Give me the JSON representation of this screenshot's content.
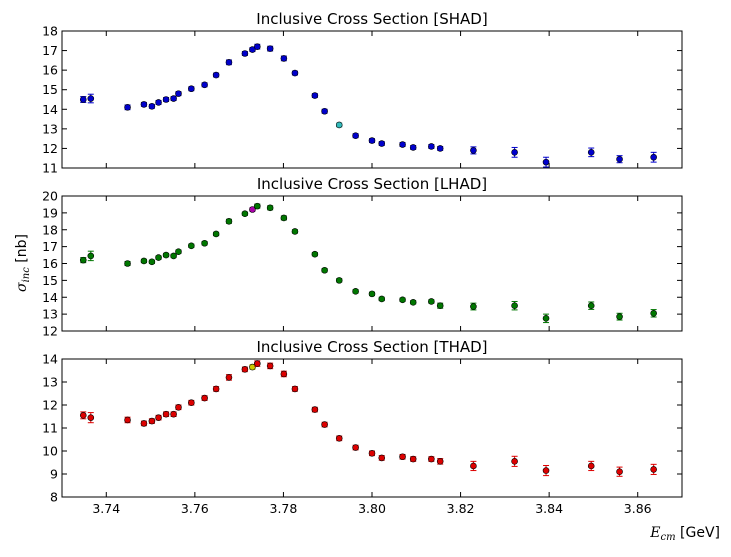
{
  "chart_data": [
    {
      "type": "scatter",
      "title": "Inclusive Cross Section [SHAD]",
      "xlim": [
        3.73,
        3.87
      ],
      "ylim": [
        11,
        18
      ],
      "yticks": [
        11,
        12,
        13,
        14,
        15,
        16,
        17,
        18
      ],
      "marker_color": "#0000cc",
      "highlight_color": "#33bbbb",
      "highlight_index": 21,
      "x": [
        3.7348,
        3.7365,
        3.7448,
        3.7485,
        3.7503,
        3.7518,
        3.7535,
        3.7552,
        3.7563,
        3.7592,
        3.7622,
        3.7648,
        3.7677,
        3.7713,
        3.773,
        3.7741,
        3.777,
        3.7801,
        3.7826,
        3.7871,
        3.7893,
        3.7926,
        3.7963,
        3.8,
        3.8022,
        3.8069,
        3.8093,
        3.8134,
        3.8154,
        3.8229,
        3.8322,
        3.8393,
        3.8495,
        3.8559,
        3.8636
      ],
      "y": [
        14.5,
        14.55,
        14.1,
        14.25,
        14.15,
        14.35,
        14.5,
        14.55,
        14.8,
        15.05,
        15.25,
        15.75,
        16.4,
        16.85,
        17.05,
        17.2,
        17.1,
        16.6,
        15.85,
        14.7,
        13.9,
        13.2,
        12.65,
        12.4,
        12.25,
        12.2,
        12.05,
        12.1,
        12.0,
        11.9,
        11.8,
        11.3,
        11.8,
        11.45,
        11.55
      ],
      "yerr": [
        0.15,
        0.22,
        0.12,
        0.1,
        0.1,
        0.1,
        0.1,
        0.1,
        0.1,
        0.1,
        0.1,
        0.1,
        0.12,
        0.1,
        0.1,
        0.12,
        0.12,
        0.12,
        0.1,
        0.1,
        0.1,
        0.1,
        0.1,
        0.1,
        0.1,
        0.1,
        0.1,
        0.1,
        0.1,
        0.18,
        0.25,
        0.25,
        0.22,
        0.18,
        0.25
      ]
    },
    {
      "type": "scatter",
      "title": "Inclusive Cross Section [LHAD]",
      "xlim": [
        3.73,
        3.87
      ],
      "ylim": [
        12,
        20
      ],
      "yticks": [
        12,
        13,
        14,
        15,
        16,
        17,
        18,
        19,
        20
      ],
      "marker_color": "#007700",
      "highlight_color": "#aa00aa",
      "highlight_index": 14,
      "x": [
        3.7348,
        3.7365,
        3.7448,
        3.7485,
        3.7503,
        3.7518,
        3.7535,
        3.7552,
        3.7563,
        3.7592,
        3.7622,
        3.7648,
        3.7677,
        3.7713,
        3.773,
        3.7741,
        3.777,
        3.7801,
        3.7826,
        3.7871,
        3.7893,
        3.7926,
        3.7963,
        3.8,
        3.8022,
        3.8069,
        3.8093,
        3.8134,
        3.8154,
        3.8229,
        3.8322,
        3.8393,
        3.8495,
        3.8559,
        3.8636
      ],
      "y": [
        16.2,
        16.45,
        16.0,
        16.15,
        16.1,
        16.35,
        16.5,
        16.45,
        16.7,
        17.05,
        17.2,
        17.75,
        18.5,
        18.95,
        19.2,
        19.4,
        19.3,
        18.7,
        17.9,
        16.55,
        15.6,
        15.0,
        14.35,
        14.2,
        13.9,
        13.85,
        13.7,
        13.75,
        13.5,
        13.45,
        13.5,
        12.75,
        13.5,
        12.85,
        13.05
      ],
      "yerr": [
        0.15,
        0.28,
        0.12,
        0.1,
        0.1,
        0.1,
        0.1,
        0.1,
        0.1,
        0.1,
        0.1,
        0.1,
        0.12,
        0.1,
        0.1,
        0.12,
        0.12,
        0.12,
        0.1,
        0.1,
        0.1,
        0.1,
        0.1,
        0.1,
        0.1,
        0.1,
        0.1,
        0.1,
        0.15,
        0.2,
        0.25,
        0.25,
        0.22,
        0.2,
        0.22
      ]
    },
    {
      "type": "scatter",
      "title": "Inclusive Cross Section [THAD]",
      "xlim": [
        3.73,
        3.87
      ],
      "ylim": [
        8,
        14
      ],
      "yticks": [
        8,
        9,
        10,
        11,
        12,
        13,
        14
      ],
      "xticks": [
        "3.74",
        "3.76",
        "3.78",
        "3.80",
        "3.82",
        "3.84",
        "3.86"
      ],
      "marker_color": "#dd0000",
      "highlight_color": "#cccc00",
      "highlight_index": 14,
      "x": [
        3.7348,
        3.7365,
        3.7448,
        3.7485,
        3.7503,
        3.7518,
        3.7535,
        3.7552,
        3.7563,
        3.7592,
        3.7622,
        3.7648,
        3.7677,
        3.7713,
        3.773,
        3.7741,
        3.777,
        3.7801,
        3.7826,
        3.7871,
        3.7893,
        3.7926,
        3.7963,
        3.8,
        3.8022,
        3.8069,
        3.8093,
        3.8134,
        3.8154,
        3.8229,
        3.8322,
        3.8393,
        3.8495,
        3.8559,
        3.8636
      ],
      "y": [
        11.55,
        11.45,
        11.35,
        11.2,
        11.3,
        11.45,
        11.6,
        11.6,
        11.9,
        12.1,
        12.3,
        12.7,
        13.2,
        13.55,
        13.65,
        13.8,
        13.7,
        13.35,
        12.7,
        11.8,
        11.15,
        10.55,
        10.15,
        9.9,
        9.7,
        9.75,
        9.65,
        9.65,
        9.55,
        9.35,
        9.55,
        9.15,
        9.35,
        9.1,
        9.2
      ],
      "yerr": [
        0.15,
        0.22,
        0.12,
        0.1,
        0.1,
        0.1,
        0.1,
        0.1,
        0.1,
        0.1,
        0.1,
        0.1,
        0.12,
        0.1,
        0.1,
        0.12,
        0.12,
        0.12,
        0.1,
        0.1,
        0.1,
        0.1,
        0.1,
        0.1,
        0.1,
        0.1,
        0.1,
        0.1,
        0.12,
        0.2,
        0.22,
        0.22,
        0.2,
        0.2,
        0.22
      ]
    }
  ],
  "ylabel": "σinc [nb]",
  "ylabel_symbol": "σ",
  "ylabel_sub": "inc",
  "ylabel_unit": " [nb]",
  "xlabel": "Ecm [GeV]",
  "xlabel_symbol": "E",
  "xlabel_sub": "cm",
  "xlabel_unit": " [GeV]"
}
